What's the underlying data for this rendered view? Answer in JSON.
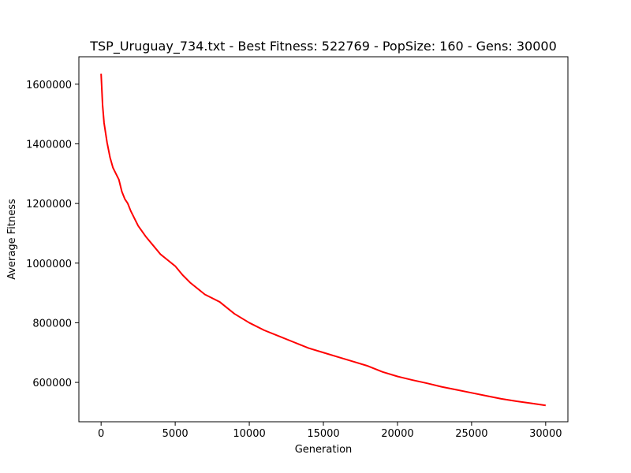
{
  "chart_data": {
    "type": "line",
    "title": "TSP_Uruguay_734.txt - Best Fitness: 522769 - PopSize: 160 - Gens: 30000",
    "xlabel": "Generation",
    "ylabel": "Average Fitness",
    "xlim": [
      -1500,
      31500
    ],
    "ylim": [
      468000,
      1692000
    ],
    "x_ticks": [
      0,
      5000,
      10000,
      15000,
      20000,
      25000,
      30000
    ],
    "x_tick_labels": [
      "0",
      "5000",
      "10000",
      "15000",
      "20000",
      "25000",
      "30000"
    ],
    "y_ticks": [
      600000,
      800000,
      1000000,
      1200000,
      1400000,
      1600000
    ],
    "y_tick_labels": [
      "600000",
      "800000",
      "1000000",
      "1200000",
      "1400000",
      "1600000"
    ],
    "grid": false,
    "series": [
      {
        "color": "#ff0000",
        "x": [
          0,
          100,
          200,
          400,
          600,
          800,
          1000,
          1200,
          1400,
          1600,
          1800,
          2000,
          2500,
          3000,
          3500,
          4000,
          4500,
          5000,
          5500,
          6000,
          7000,
          8000,
          9000,
          10000,
          11000,
          12000,
          13000,
          14000,
          15000,
          16000,
          17000,
          18000,
          19000,
          20000,
          21000,
          22000,
          23000,
          24000,
          25000,
          26000,
          27000,
          28000,
          29000,
          30000
        ],
        "y": [
          1635000,
          1530000,
          1470000,
          1405000,
          1355000,
          1320000,
          1300000,
          1280000,
          1240000,
          1215000,
          1200000,
          1175000,
          1125000,
          1090000,
          1060000,
          1030000,
          1010000,
          990000,
          960000,
          935000,
          895000,
          870000,
          830000,
          800000,
          775000,
          755000,
          735000,
          715000,
          700000,
          685000,
          670000,
          655000,
          635000,
          620000,
          608000,
          597000,
          585000,
          575000,
          565000,
          555000,
          545000,
          537000,
          530000,
          523000
        ]
      }
    ]
  }
}
